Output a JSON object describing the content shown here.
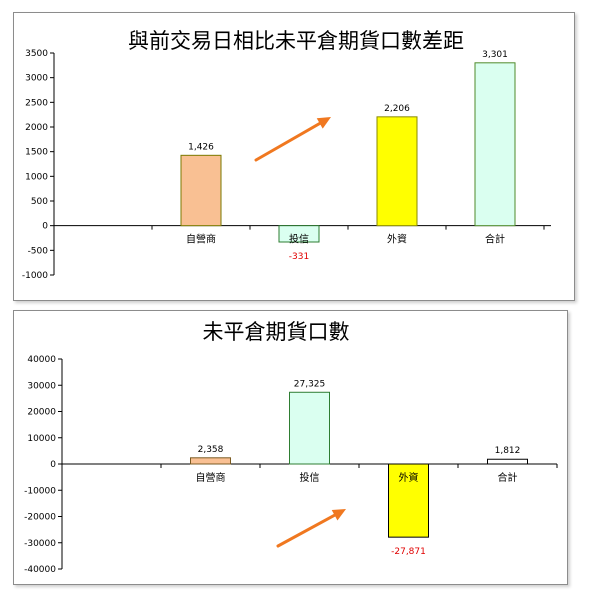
{
  "chart_data": [
    {
      "type": "bar",
      "title": "與前交易日相比未平倉期貨口數差距",
      "categories": [
        "自營商",
        "投信",
        "外資",
        "合計"
      ],
      "values": [
        1426,
        -331,
        2206,
        3301
      ],
      "value_labels": [
        "1,426",
        "-331",
        "2,206",
        "3,301"
      ],
      "ylim": [
        -1000,
        3500
      ],
      "yticks": [
        -1000,
        -500,
        0,
        500,
        1000,
        1500,
        2000,
        2500,
        3000,
        3500
      ],
      "ytick_labels": [
        "-1000",
        "-500",
        "0",
        "500",
        "1000",
        "1500",
        "2000",
        "2500",
        "3000",
        "3500"
      ],
      "grid": false,
      "colors": {
        "fills": [
          "#f9c093",
          "#dafff0",
          "#ffff00",
          "#dafff0"
        ],
        "borders": [
          "#7a7a00",
          "#2e7d32",
          "#8a8a00",
          "#4f8a2a"
        ],
        "negative_label": "#e00000",
        "arrow": "#f07820"
      }
    },
    {
      "type": "bar",
      "title": "未平倉期貨口數",
      "categories": [
        "自營商",
        "投信",
        "外資",
        "合計"
      ],
      "values": [
        2358,
        27325,
        -27871,
        1812
      ],
      "value_labels": [
        "2,358",
        "27,325",
        "-27,871",
        "1,812"
      ],
      "ylim": [
        -40000,
        40000
      ],
      "yticks": [
        -40000,
        -30000,
        -20000,
        -10000,
        0,
        10000,
        20000,
        30000,
        40000
      ],
      "ytick_labels": [
        "-40000",
        "-30000",
        "-20000",
        "-10000",
        "0",
        "10000",
        "20000",
        "30000",
        "40000"
      ],
      "grid": false,
      "colors": {
        "fills": [
          "#f9c093",
          "#dafff0",
          "#ffff00",
          "#ffffff"
        ],
        "borders": [
          "#7a5a20",
          "#2e7d32",
          "#000000",
          "#000000"
        ],
        "negative_label": "#e00000",
        "arrow": "#f07820"
      }
    }
  ]
}
